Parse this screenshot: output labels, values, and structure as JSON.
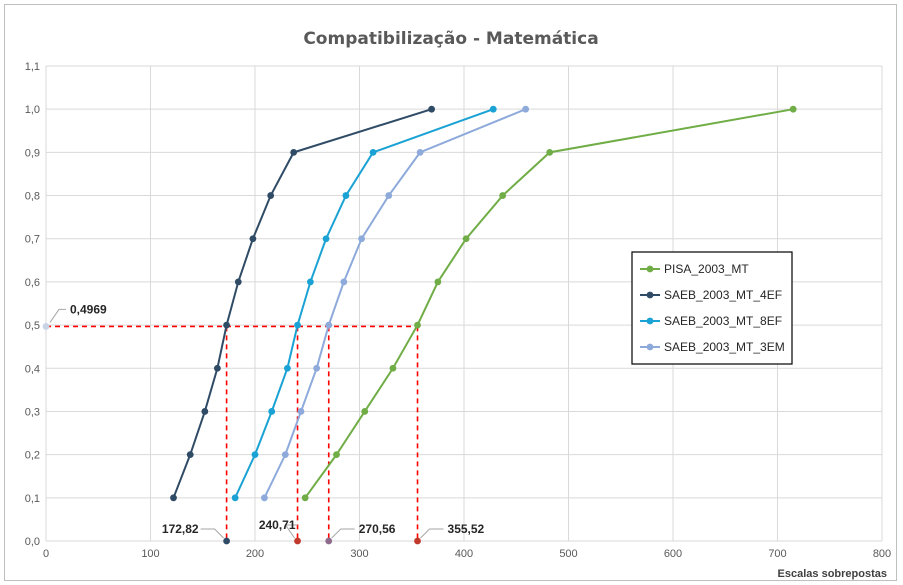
{
  "chart_data": {
    "type": "line",
    "title": "Compatibilização - Matemática",
    "xlabel": "Escalas sobrepostas",
    "ylabel": "",
    "xlim": [
      0,
      800
    ],
    "ylim": [
      0,
      1.1
    ],
    "x_ticks": [
      "0",
      "100",
      "200",
      "300",
      "400",
      "500",
      "600",
      "700",
      "800"
    ],
    "y_ticks": [
      "0,0",
      "0,1",
      "0,2",
      "0,3",
      "0,4",
      "0,5",
      "0,6",
      "0,7",
      "0,8",
      "0,9",
      "1,0",
      "1,1"
    ],
    "grid": true,
    "legend_position": "right",
    "series": [
      {
        "name": "PISA_2003_MT",
        "color": "#70ad47",
        "x": [
          248,
          278,
          305,
          332,
          355.52,
          375,
          402,
          437,
          482,
          715
        ],
        "y": [
          0.1,
          0.2,
          0.3,
          0.4,
          0.5,
          0.6,
          0.7,
          0.8,
          0.9,
          1.0
        ]
      },
      {
        "name": "SAEB_2003_MT_4EF",
        "color": "#2f4b66",
        "x": [
          122,
          138,
          152,
          164,
          172.82,
          184,
          198,
          215,
          237,
          369
        ],
        "y": [
          0.1,
          0.2,
          0.3,
          0.4,
          0.5,
          0.6,
          0.7,
          0.8,
          0.9,
          1.0
        ]
      },
      {
        "name": "SAEB_2003_MT_8EF",
        "color": "#1aa2d4",
        "x": [
          181,
          200,
          216,
          231,
          240.71,
          253,
          268,
          287,
          313,
          428
        ],
        "y": [
          0.1,
          0.2,
          0.3,
          0.4,
          0.5,
          0.6,
          0.7,
          0.8,
          0.9,
          1.0
        ]
      },
      {
        "name": "SAEB_2003_MT_3EM",
        "color": "#8eaadb",
        "x": [
          209,
          229,
          244,
          259,
          270.56,
          285,
          302,
          328,
          358,
          459
        ],
        "y": [
          0.1,
          0.2,
          0.3,
          0.4,
          0.5,
          0.6,
          0.7,
          0.8,
          0.9,
          1.0
        ]
      }
    ],
    "reference_line": {
      "y": 0.4969,
      "label": "0,4969",
      "color": "#ff0000"
    },
    "annotations": [
      {
        "label": "172,82",
        "x": 172.82,
        "color": "#2f4b66"
      },
      {
        "label": "240,71",
        "x": 240.71,
        "color": "#c0392b"
      },
      {
        "label": "270,56",
        "x": 270.56,
        "color": "#8e6b8c"
      },
      {
        "label": "355,52",
        "x": 355.52,
        "color": "#c0392b"
      }
    ]
  }
}
